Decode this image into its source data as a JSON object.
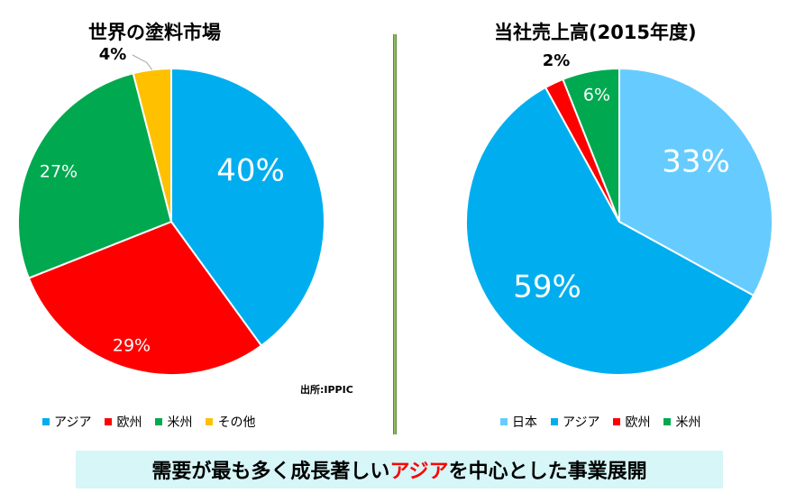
{
  "titles": {
    "left": "世界の塗料市場",
    "right": "当社売上高(2015年度)"
  },
  "source_note": "出所:IPPIC",
  "banner": {
    "pre": "需要が最も多く成長著しい",
    "highlight": "アジア",
    "post": "を中心とした事業展開"
  },
  "chart_data": [
    {
      "type": "pie",
      "title": "世界の塗料市場",
      "slices": [
        {
          "label": "アジア",
          "value": 40,
          "display": "40%",
          "color": "#00aeef"
        },
        {
          "label": "欧州",
          "value": 29,
          "display": "29%",
          "color": "#ff0000"
        },
        {
          "label": "米州",
          "value": 27,
          "display": "27%",
          "color": "#00a94f"
        },
        {
          "label": "その他",
          "value": 4,
          "display": "4%",
          "color": "#ffc000"
        }
      ],
      "legend": [
        "アジア",
        "欧州",
        "米州",
        "その他"
      ],
      "legend_position": "bottom"
    },
    {
      "type": "pie",
      "title": "当社売上高(2015年度)",
      "slices": [
        {
          "label": "日本",
          "value": 33,
          "display": "33%",
          "color": "#66ccff"
        },
        {
          "label": "アジア",
          "value": 59,
          "display": "59%",
          "color": "#00aeef"
        },
        {
          "label": "欧州",
          "value": 2,
          "display": "2%",
          "color": "#ff0000"
        },
        {
          "label": "米州",
          "value": 6,
          "display": "6%",
          "color": "#00a94f"
        }
      ],
      "legend": [
        "日本",
        "アジア",
        "欧州",
        "米州"
      ],
      "legend_position": "bottom"
    }
  ]
}
